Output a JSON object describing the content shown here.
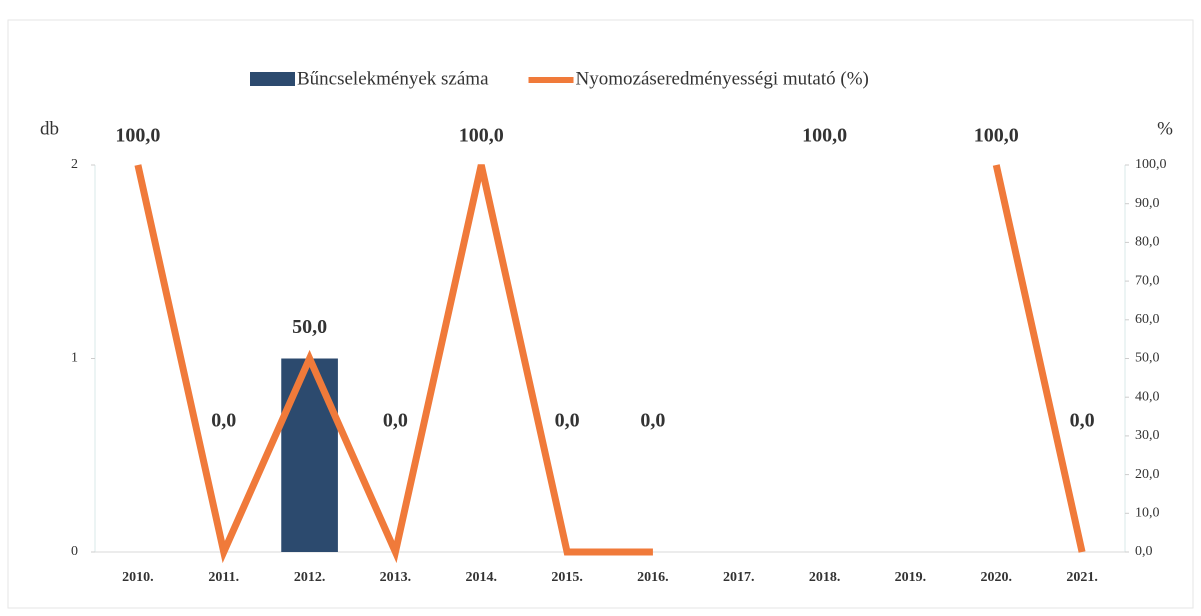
{
  "chart_data": {
    "type": "bar-line",
    "categories": [
      "2010.",
      "2011.",
      "2012.",
      "2013.",
      "2014.",
      "2015.",
      "2016.",
      "2017.",
      "2018.",
      "2019.",
      "2020.",
      "2021."
    ],
    "series": [
      {
        "name": "Bűncselekmények száma",
        "color": "#2c4a6e",
        "type": "bar",
        "axis": "y",
        "values": [
          0,
          0,
          1,
          0,
          0,
          0,
          0,
          0,
          0,
          0,
          0,
          0
        ]
      },
      {
        "name": "Nyomozáseredményességi mutató (%)",
        "color": "#f07a3a",
        "type": "line",
        "axis": "y2",
        "values": [
          100,
          0,
          50,
          0,
          100,
          0,
          0,
          null,
          100,
          null,
          100,
          0
        ],
        "value_labels": [
          "100,0",
          "0,0",
          "50,0",
          "0,0",
          "100,0",
          "0,0",
          "0,0",
          null,
          "100,0",
          null,
          "100,0",
          "0,0"
        ]
      }
    ],
    "ylabel": "db",
    "y2label": "%",
    "ylim": [
      0,
      2
    ],
    "yticks": [
      0,
      1,
      2
    ],
    "y2lim": [
      0,
      100
    ],
    "y2ticks": [
      {
        "value": 0,
        "label": "0,0"
      },
      {
        "value": 10,
        "label": "10,0"
      },
      {
        "value": 20,
        "label": "20,0"
      },
      {
        "value": 30,
        "label": "30,0"
      },
      {
        "value": 40,
        "label": "40,0"
      },
      {
        "value": 50,
        "label": "50,0"
      },
      {
        "value": 60,
        "label": "60,0"
      },
      {
        "value": 70,
        "label": "70,0"
      },
      {
        "value": 80,
        "label": "80,0"
      },
      {
        "value": 90,
        "label": "90,0"
      },
      {
        "value": 100,
        "label": "100,0"
      }
    ],
    "legend": "top"
  }
}
